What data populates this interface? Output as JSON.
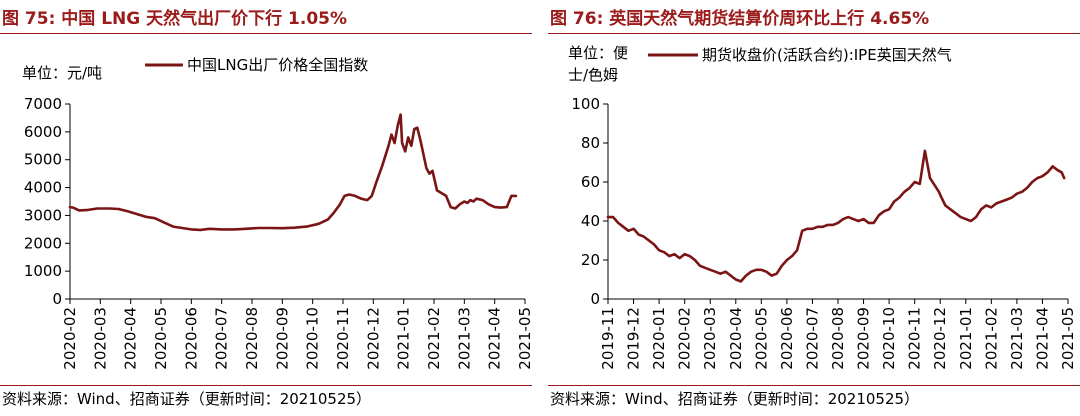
{
  "charts": [
    {
      "fig_title": "图 75:  中国 LNG 天然气出厂价下行 1.05%",
      "source": "资料来源：Wind、招商证券（更新时间：20210525）",
      "line_color": "#7b1414",
      "chart_data": {
        "type": "line",
        "title": "图 75:  中国 LNG 天然气出厂价下行 1.05%",
        "ylabel": "单位：元/吨",
        "legend": "中国LNG出厂价格全国指数",
        "legend_position": "top",
        "ylim": [
          0,
          7000
        ],
        "yticks": [
          "0",
          "1000",
          "2000",
          "3000",
          "4000",
          "5000",
          "6000",
          "7000"
        ],
        "xticks": [
          "2020-02",
          "2020-03",
          "2020-04",
          "2020-05",
          "2020-06",
          "2020-07",
          "2020-08",
          "2020-09",
          "2020-10",
          "2020-11",
          "2020-12",
          "2021-01",
          "2021-02",
          "2021-03",
          "2021-04",
          "2021-05"
        ],
        "x": [
          0,
          0.1,
          0.3,
          0.6,
          0.9,
          1.3,
          1.6,
          1.9,
          2.2,
          2.5,
          2.8,
          3.1,
          3.4,
          3.7,
          4.0,
          4.3,
          4.6,
          5.0,
          5.4,
          5.8,
          6.2,
          6.6,
          7.0,
          7.4,
          7.8,
          8.2,
          8.5,
          8.7,
          8.9,
          9.05,
          9.2,
          9.4,
          9.6,
          9.8,
          9.95,
          10.1,
          10.3,
          10.5,
          10.6,
          10.7,
          10.8,
          10.9,
          10.95,
          11.05,
          11.15,
          11.25,
          11.35,
          11.45,
          11.55,
          11.65,
          11.75,
          11.85,
          11.95,
          12.1,
          12.25,
          12.4,
          12.55,
          12.7,
          12.85,
          13.0,
          13.1,
          13.2,
          13.3,
          13.4,
          13.6,
          13.8,
          14.0,
          14.2,
          14.4,
          14.55,
          14.7
        ],
        "values": [
          3300,
          3280,
          3180,
          3200,
          3250,
          3250,
          3230,
          3150,
          3050,
          2950,
          2900,
          2750,
          2600,
          2550,
          2500,
          2480,
          2520,
          2500,
          2500,
          2520,
          2550,
          2550,
          2540,
          2560,
          2600,
          2700,
          2850,
          3100,
          3400,
          3700,
          3750,
          3700,
          3600,
          3550,
          3700,
          4200,
          4800,
          5500,
          5900,
          5600,
          6200,
          6620,
          5600,
          5300,
          5800,
          5500,
          6100,
          6150,
          5700,
          5200,
          4700,
          4500,
          4600,
          3900,
          3800,
          3700,
          3300,
          3250,
          3400,
          3500,
          3450,
          3550,
          3500,
          3600,
          3550,
          3400,
          3300,
          3280,
          3300,
          3700,
          3700
        ]
      }
    },
    {
      "fig_title": "图 76:  英国天然气期货结算价周环比上行 4.65%",
      "source": "资料来源：Wind、招商证券（更新时间：20210525）",
      "line_color": "#7b1414",
      "chart_data": {
        "type": "line",
        "title": "图 76:  英国天然气期货结算价周环比上行 4.65%",
        "ylabel_line1": "单位：便",
        "ylabel_line2": "士/色姆",
        "legend": "期货收盘价(活跃合约):IPE英国天然气",
        "legend_position": "top",
        "ylim": [
          0,
          100
        ],
        "yticks": [
          "0",
          "20",
          "40",
          "60",
          "80",
          "100"
        ],
        "xticks": [
          "2019-11",
          "2019-12",
          "2020-01",
          "2020-02",
          "2020-03",
          "2020-04",
          "2020-05",
          "2020-06",
          "2020-07",
          "2020-08",
          "2020-09",
          "2020-10",
          "2020-11",
          "2020-12",
          "2021-01",
          "2021-02",
          "2021-03",
          "2021-04",
          "2021-05"
        ],
        "x": [
          0,
          0.2,
          0.4,
          0.6,
          0.8,
          1.0,
          1.2,
          1.4,
          1.6,
          1.8,
          2.0,
          2.2,
          2.4,
          2.6,
          2.8,
          3.0,
          3.2,
          3.4,
          3.6,
          3.8,
          4.0,
          4.2,
          4.4,
          4.6,
          4.8,
          5.0,
          5.2,
          5.4,
          5.6,
          5.8,
          6.0,
          6.2,
          6.4,
          6.6,
          6.8,
          7.0,
          7.2,
          7.4,
          7.6,
          7.8,
          8.0,
          8.2,
          8.4,
          8.6,
          8.8,
          9.0,
          9.2,
          9.4,
          9.6,
          9.8,
          10.0,
          10.2,
          10.4,
          10.6,
          10.8,
          11.0,
          11.2,
          11.4,
          11.6,
          11.8,
          12.0,
          12.2,
          12.4,
          12.6,
          12.8,
          12.95,
          13.05,
          13.2,
          13.4,
          13.6,
          13.8,
          14.0,
          14.2,
          14.4,
          14.6,
          14.8,
          15.0,
          15.2,
          15.4,
          15.6,
          15.8,
          16.0,
          16.2,
          16.4,
          16.6,
          16.8,
          17.0,
          17.2,
          17.4,
          17.6,
          17.75,
          17.85
        ],
        "values": [
          42,
          42,
          39,
          37,
          35,
          36,
          33,
          32,
          30,
          28,
          25,
          24,
          22,
          23,
          21,
          23,
          22,
          20,
          17,
          16,
          15,
          14,
          13,
          14,
          12,
          10,
          9,
          12,
          14,
          15,
          15,
          14,
          12,
          13,
          17,
          20,
          22,
          25,
          35,
          36,
          36,
          37,
          37,
          38,
          38,
          39,
          41,
          42,
          41,
          40,
          41,
          39,
          39,
          43,
          45,
          46,
          50,
          52,
          55,
          57,
          60,
          59,
          76,
          62,
          58,
          55,
          52,
          48,
          46,
          44,
          42,
          41,
          40,
          42,
          46,
          48,
          47,
          49,
          50,
          51,
          52,
          54,
          55,
          57,
          60,
          62,
          63,
          65,
          68,
          66,
          65,
          62
        ]
      }
    }
  ]
}
